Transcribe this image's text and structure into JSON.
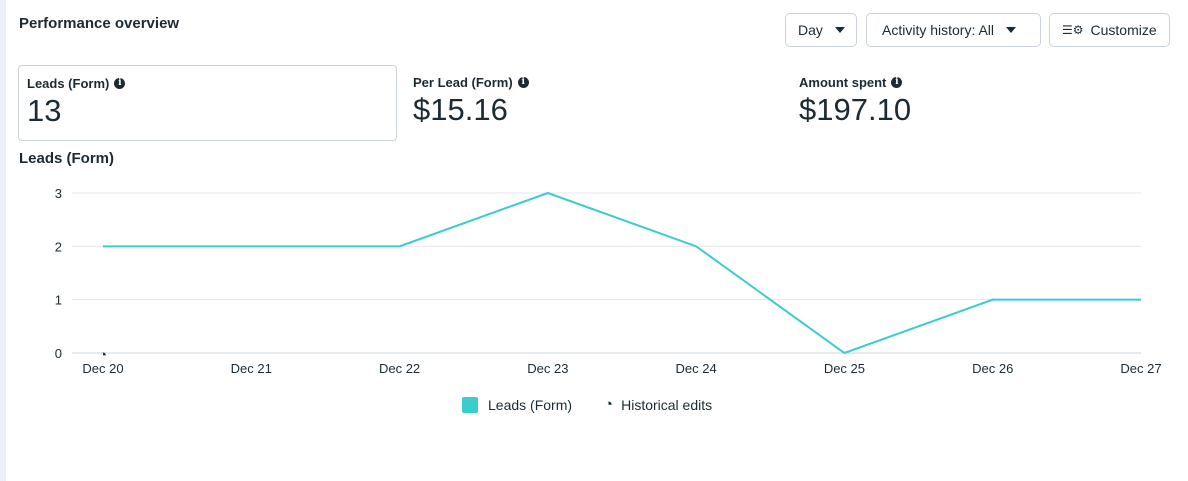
{
  "header": {
    "title": "Performance overview",
    "day_label": "Day",
    "activity_label": "Activity history: All",
    "customize_label": "Customize"
  },
  "metrics": [
    {
      "label": "Leads (Form)",
      "value": "13"
    },
    {
      "label": "Per Lead (Form)",
      "value": "$15.16"
    },
    {
      "label": "Amount spent",
      "value": "$197.10"
    }
  ],
  "chart_data": {
    "type": "line",
    "title": "Leads (Form)",
    "categories": [
      "Dec 20",
      "Dec 21",
      "Dec 22",
      "Dec 23",
      "Dec 24",
      "Dec 25",
      "Dec 26",
      "Dec 27"
    ],
    "series": [
      {
        "name": "Leads (Form)",
        "values": [
          2,
          2,
          2,
          3,
          2,
          0,
          1,
          1
        ],
        "color": "#3bcccc"
      }
    ],
    "yticks": [
      "0",
      "1",
      "2",
      "3"
    ],
    "ylim": [
      0,
      3
    ],
    "grid": true,
    "legend_placement": "bottom",
    "legend": [
      "Leads (Form)",
      "Historical edits"
    ],
    "annotations": [
      {
        "type": "historical-edit",
        "x": "Dec 20"
      }
    ]
  }
}
